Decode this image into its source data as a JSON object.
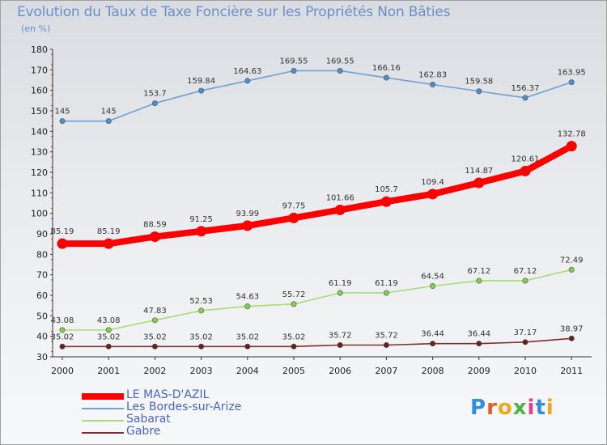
{
  "title": "Evolution du Taux de Taxe Foncière sur les Propriétés Non Bâties",
  "unit": "(en %)",
  "logo": {
    "text": "Proxiti",
    "letter_colors": [
      "#2f8de4",
      "#e45b2a",
      "#f2a51a",
      "#4fb14a",
      "#e23f8a",
      "#2f8de4",
      "#f2a51a"
    ]
  },
  "chart_data": {
    "type": "line",
    "title": "Evolution du Taux de Taxe Foncière sur les Propriétés Non Bâties",
    "ylabel": "(en %)",
    "xlabel": "",
    "ylim": [
      30,
      180
    ],
    "yticks": [
      30,
      40,
      50,
      60,
      70,
      80,
      90,
      100,
      110,
      120,
      130,
      140,
      150,
      160,
      170,
      180
    ],
    "x": [
      "2000",
      "2001",
      "2002",
      "2003",
      "2004",
      "2005",
      "2006",
      "2007",
      "2008",
      "2009",
      "2010",
      "2011"
    ],
    "grid": false,
    "legend_position": "bottom-left",
    "series": [
      {
        "name": "LE MAS-D'AZIL",
        "color": "#ff0000",
        "marker_color": "#ff0000",
        "emphasis": true,
        "values": [
          85.19,
          85.19,
          88.59,
          91.25,
          93.99,
          97.75,
          101.66,
          105.7,
          109.4,
          114.87,
          120.61,
          132.78
        ],
        "labels": [
          "85.19",
          "85.19",
          "88.59",
          "91.25",
          "93.99",
          "97.75",
          "101.66",
          "105.7",
          "109.4",
          "114.87",
          "120.61",
          "132.78"
        ]
      },
      {
        "name": "Les Bordes-sur-Arize",
        "color": "#6fa0d0",
        "marker_color": "#4a90d0",
        "emphasis": false,
        "values": [
          145,
          145,
          153.7,
          159.84,
          164.63,
          169.55,
          169.55,
          166.16,
          162.83,
          159.58,
          156.37,
          163.95
        ],
        "labels": [
          "145",
          "145",
          "153.7",
          "159.84",
          "164.63",
          "169.55",
          "169.55",
          "166.16",
          "162.83",
          "159.58",
          "156.37",
          "163.95"
        ]
      },
      {
        "name": "Sabarat",
        "color": "#a8dc78",
        "marker_color": "#7fd04a",
        "emphasis": false,
        "values": [
          43.08,
          43.08,
          47.83,
          52.53,
          54.63,
          55.72,
          61.19,
          61.19,
          64.54,
          67.12,
          67.12,
          72.49
        ],
        "labels": [
          "43.08",
          "43.08",
          "47.83",
          "52.53",
          "54.63",
          "55.72",
          "61.19",
          "61.19",
          "64.54",
          "67.12",
          "67.12",
          "72.49"
        ]
      },
      {
        "name": "Gabre",
        "color": "#7a3030",
        "marker_color": "#6a1f1f",
        "emphasis": false,
        "values": [
          35.02,
          35.02,
          35.02,
          35.02,
          35.02,
          35.02,
          35.72,
          35.72,
          36.44,
          36.44,
          37.17,
          38.97
        ],
        "labels": [
          "35.02",
          "35.02",
          "35.02",
          "35.02",
          "35.02",
          "35.02",
          "35.72",
          "35.72",
          "36.44",
          "36.44",
          "37.17",
          "38.97"
        ]
      }
    ]
  }
}
